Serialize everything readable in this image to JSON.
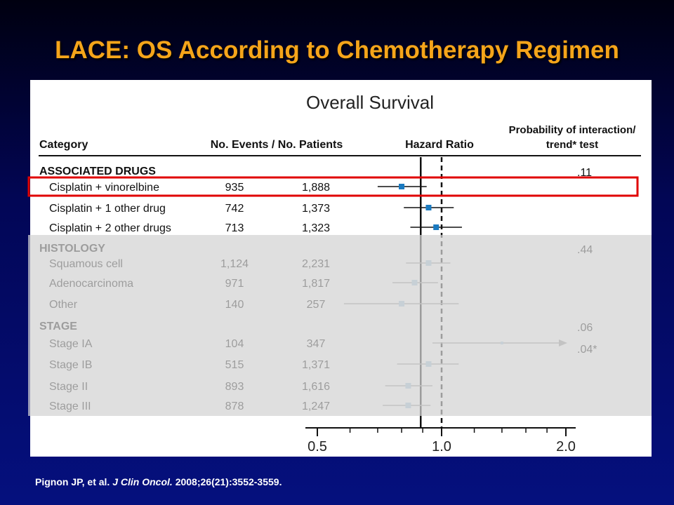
{
  "slide": {
    "title": "LACE: OS According to Chemotherapy Regimen",
    "citation": {
      "authors": "Pignon JP, et al.",
      "journal": "J Clin Oncol.",
      "ref": "2008;26(21):3552-3559."
    }
  },
  "colors": {
    "title": "#f5a51a",
    "highlight_box": "#e00000",
    "marker_active": "#1a7ac0",
    "marker_faded": "#a9c9de",
    "line_faded": "#9a9a9a"
  },
  "chart_data": {
    "type": "forest",
    "title": "Overall Survival",
    "headers": {
      "category": "Category",
      "events": "No. Events / No. Patients",
      "hr": "Hazard Ratio",
      "p_line1": "Probability of interaction/",
      "p_line2": "trend* test"
    },
    "xlim": [
      0.5,
      2.0
    ],
    "x_ticks": [
      "0.5",
      "1.0",
      "2.0"
    ],
    "reference_line": 1.0,
    "overall_line": 0.89,
    "highlighted_row": "Cisplatin + vinorelbine",
    "groups": [
      {
        "name": "ASSOCIATED DRUGS",
        "p": ".11",
        "faded": false,
        "rows": [
          {
            "label": "Cisplatin + vinorelbine",
            "events": "935",
            "patients": "1,888",
            "hr": 0.8,
            "lo": 0.7,
            "hi": 0.92
          },
          {
            "label": "Cisplatin + 1 other drug",
            "events": "742",
            "patients": "1,373",
            "hr": 0.93,
            "lo": 0.81,
            "hi": 1.07
          },
          {
            "label": "Cisplatin + 2 other drugs",
            "events": "713",
            "patients": "1,323",
            "hr": 0.97,
            "lo": 0.84,
            "hi": 1.12
          }
        ]
      },
      {
        "name": "HISTOLOGY",
        "p": ".44",
        "faded": true,
        "rows": [
          {
            "label": "Squamous cell",
            "events": "1,124",
            "patients": "2,231",
            "hr": 0.93,
            "lo": 0.82,
            "hi": 1.05
          },
          {
            "label": "Adenocarcinoma",
            "events": "971",
            "patients": "1,817",
            "hr": 0.86,
            "lo": 0.76,
            "hi": 0.98
          },
          {
            "label": "Other",
            "events": "140",
            "patients": "257",
            "hr": 0.8,
            "lo": 0.58,
            "hi": 1.1
          }
        ]
      },
      {
        "name": "STAGE",
        "p": ".06",
        "faded": true,
        "rows": [
          {
            "label": "Stage IA",
            "events": "104",
            "patients": "347",
            "hr": 1.4,
            "lo": 0.95,
            "hi": 2.06,
            "arrow": true,
            "p": ".04*"
          },
          {
            "label": "Stage IB",
            "events": "515",
            "patients": "1,371",
            "hr": 0.93,
            "lo": 0.78,
            "hi": 1.1
          },
          {
            "label": "Stage II",
            "events": "893",
            "patients": "1,616",
            "hr": 0.83,
            "lo": 0.73,
            "hi": 0.95
          },
          {
            "label": "Stage III",
            "events": "878",
            "patients": "1,247",
            "hr": 0.83,
            "lo": 0.72,
            "hi": 0.94
          }
        ]
      }
    ]
  }
}
